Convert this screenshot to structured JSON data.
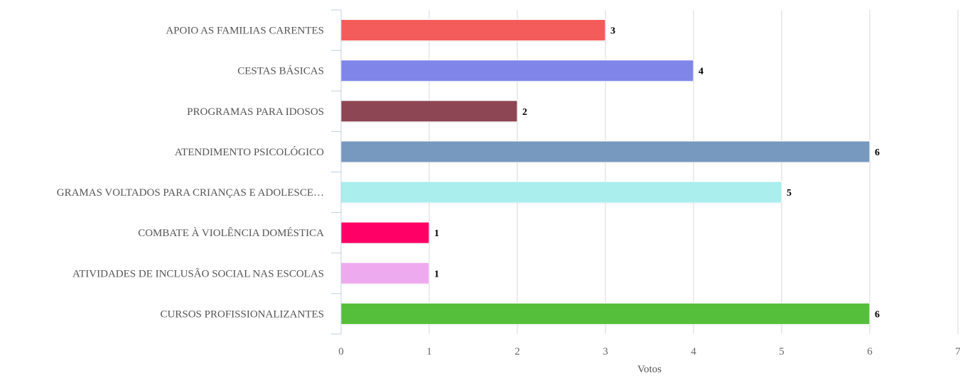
{
  "chart_data": {
    "type": "bar",
    "orientation": "horizontal",
    "categories": [
      "APOIO AS FAMILIAS CARENTES",
      "CESTAS BÁSICAS",
      "PROGRAMAS PARA IDOSOS",
      "ATENDIMENTO PSICOLÓGICO",
      "GRAMAS VOLTADOS PARA CRIANÇAS E ADOLESCE…",
      "COMBATE À VIOLÊNCIA DOMÉSTICA",
      "ATIVIDADES DE INCLUSÃO SOCIAL NAS ESCOLAS",
      "CURSOS PROFISSIONALIZANTES"
    ],
    "values": [
      3,
      4,
      2,
      6,
      5,
      1,
      1,
      6
    ],
    "data_labels": [
      "3",
      "4",
      "2",
      "6",
      "5",
      "1",
      "1",
      "6"
    ],
    "colors": [
      "#f45b5b",
      "#8085e9",
      "#8d4654",
      "#7798bf",
      "#aaeeee",
      "#ff0066",
      "#eeaaee",
      "#55bf3b"
    ],
    "xlabel": "Votos",
    "ylabel": "",
    "xlim": [
      0,
      7
    ],
    "x_ticks": [
      "0",
      "1",
      "2",
      "3",
      "4",
      "5",
      "6",
      "7"
    ],
    "grid": true,
    "legend": "none"
  }
}
